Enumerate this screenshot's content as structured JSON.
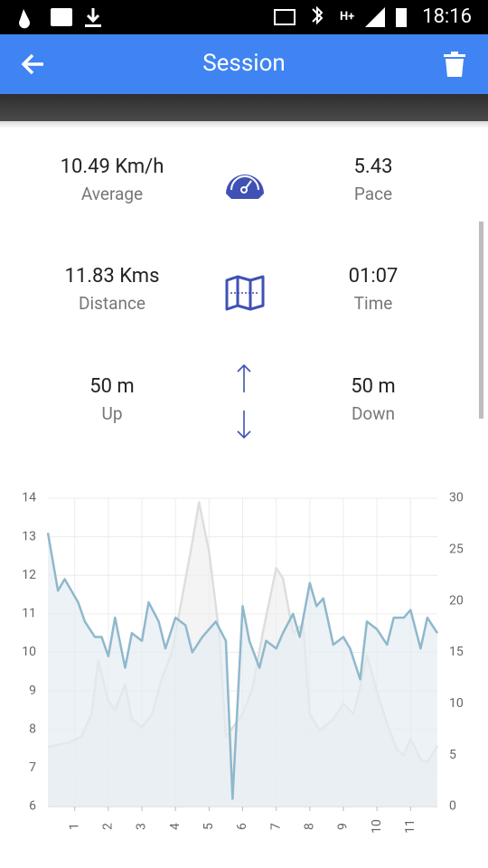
{
  "status_bar": {
    "time": "18:16"
  },
  "app_bar": {
    "title": "Session"
  },
  "stats": [
    {
      "left": {
        "value": "10.49 Km/h",
        "label": "Average"
      },
      "right": {
        "value": "5.43",
        "label": "Pace"
      }
    },
    {
      "left": {
        "value": "11.83 Kms",
        "label": "Distance"
      },
      "right": {
        "value": "01:07",
        "label": "Time"
      }
    },
    {
      "left": {
        "value": "50 m",
        "label": "Up"
      },
      "right": {
        "value": "50 m",
        "label": "Down"
      }
    }
  ],
  "chart_data": {
    "type": "line",
    "xlim": [
      0.2,
      11.8
    ],
    "xticks": [
      1,
      2,
      3,
      4,
      5,
      6,
      7,
      8,
      9,
      10,
      11
    ],
    "ylim": [
      6,
      14
    ],
    "yticks": [
      6,
      7,
      8,
      9,
      10,
      11,
      12,
      13,
      14
    ],
    "y2lim": [
      0,
      30
    ],
    "y2ticks": [
      0,
      5,
      10,
      15,
      20,
      25,
      30
    ],
    "grid": true,
    "series": [
      {
        "color": "#8fb8cc",
        "fill": "#e4edf1",
        "x": [
          0.2,
          0.5,
          0.7,
          1.1,
          1.3,
          1.6,
          1.8,
          2.0,
          2.2,
          2.5,
          2.7,
          3.0,
          3.2,
          3.5,
          3.7,
          4.0,
          4.3,
          4.5,
          4.8,
          5.2,
          5.5,
          5.7,
          6.0,
          6.2,
          6.5,
          6.7,
          7.0,
          7.2,
          7.5,
          7.7,
          8.0,
          8.2,
          8.4,
          8.7,
          9.0,
          9.2,
          9.5,
          9.7,
          10.0,
          10.3,
          10.5,
          10.8,
          11.0,
          11.3,
          11.5,
          11.8
        ],
        "values": [
          13.1,
          11.6,
          11.9,
          11.3,
          10.8,
          10.4,
          10.4,
          9.9,
          10.9,
          9.6,
          10.5,
          10.3,
          11.3,
          10.8,
          10.1,
          10.9,
          10.7,
          10.0,
          10.4,
          10.8,
          10.3,
          6.2,
          11.2,
          10.3,
          9.6,
          10.3,
          10.1,
          10.5,
          11.0,
          10.4,
          11.8,
          11.2,
          11.4,
          10.2,
          10.4,
          10.1,
          9.3,
          10.8,
          10.6,
          10.2,
          10.9,
          10.9,
          11.1,
          10.1,
          10.9,
          10.5
        ]
      },
      {
        "color": "#dedede",
        "fill": "#efefef",
        "axis": "y2",
        "x": [
          0.2,
          0.8,
          1.2,
          1.5,
          1.7,
          2.0,
          2.2,
          2.5,
          2.7,
          3.0,
          3.3,
          3.6,
          3.9,
          4.1,
          4.5,
          4.7,
          5.0,
          5.3,
          5.5,
          5.8,
          6.0,
          6.3,
          6.6,
          7.0,
          7.2,
          7.5,
          7.8,
          8.0,
          8.3,
          8.7,
          9.0,
          9.3,
          9.5,
          9.7,
          10.0,
          10.3,
          10.6,
          10.8,
          11.0,
          11.3,
          11.5,
          11.8
        ],
        "values": [
          5.8,
          6.2,
          6.8,
          9,
          14.2,
          10.3,
          9.4,
          11.9,
          8.5,
          7.7,
          9,
          12.5,
          15.1,
          18.6,
          25.7,
          29.6,
          24.8,
          16.9,
          6.8,
          8.1,
          9,
          11.6,
          16.9,
          23.2,
          22.2,
          16.9,
          17.8,
          9,
          7.4,
          8.5,
          10,
          9,
          11.6,
          14.7,
          11.2,
          8.1,
          5.5,
          5,
          6.6,
          4.6,
          4.3,
          5.9
        ]
      }
    ]
  }
}
